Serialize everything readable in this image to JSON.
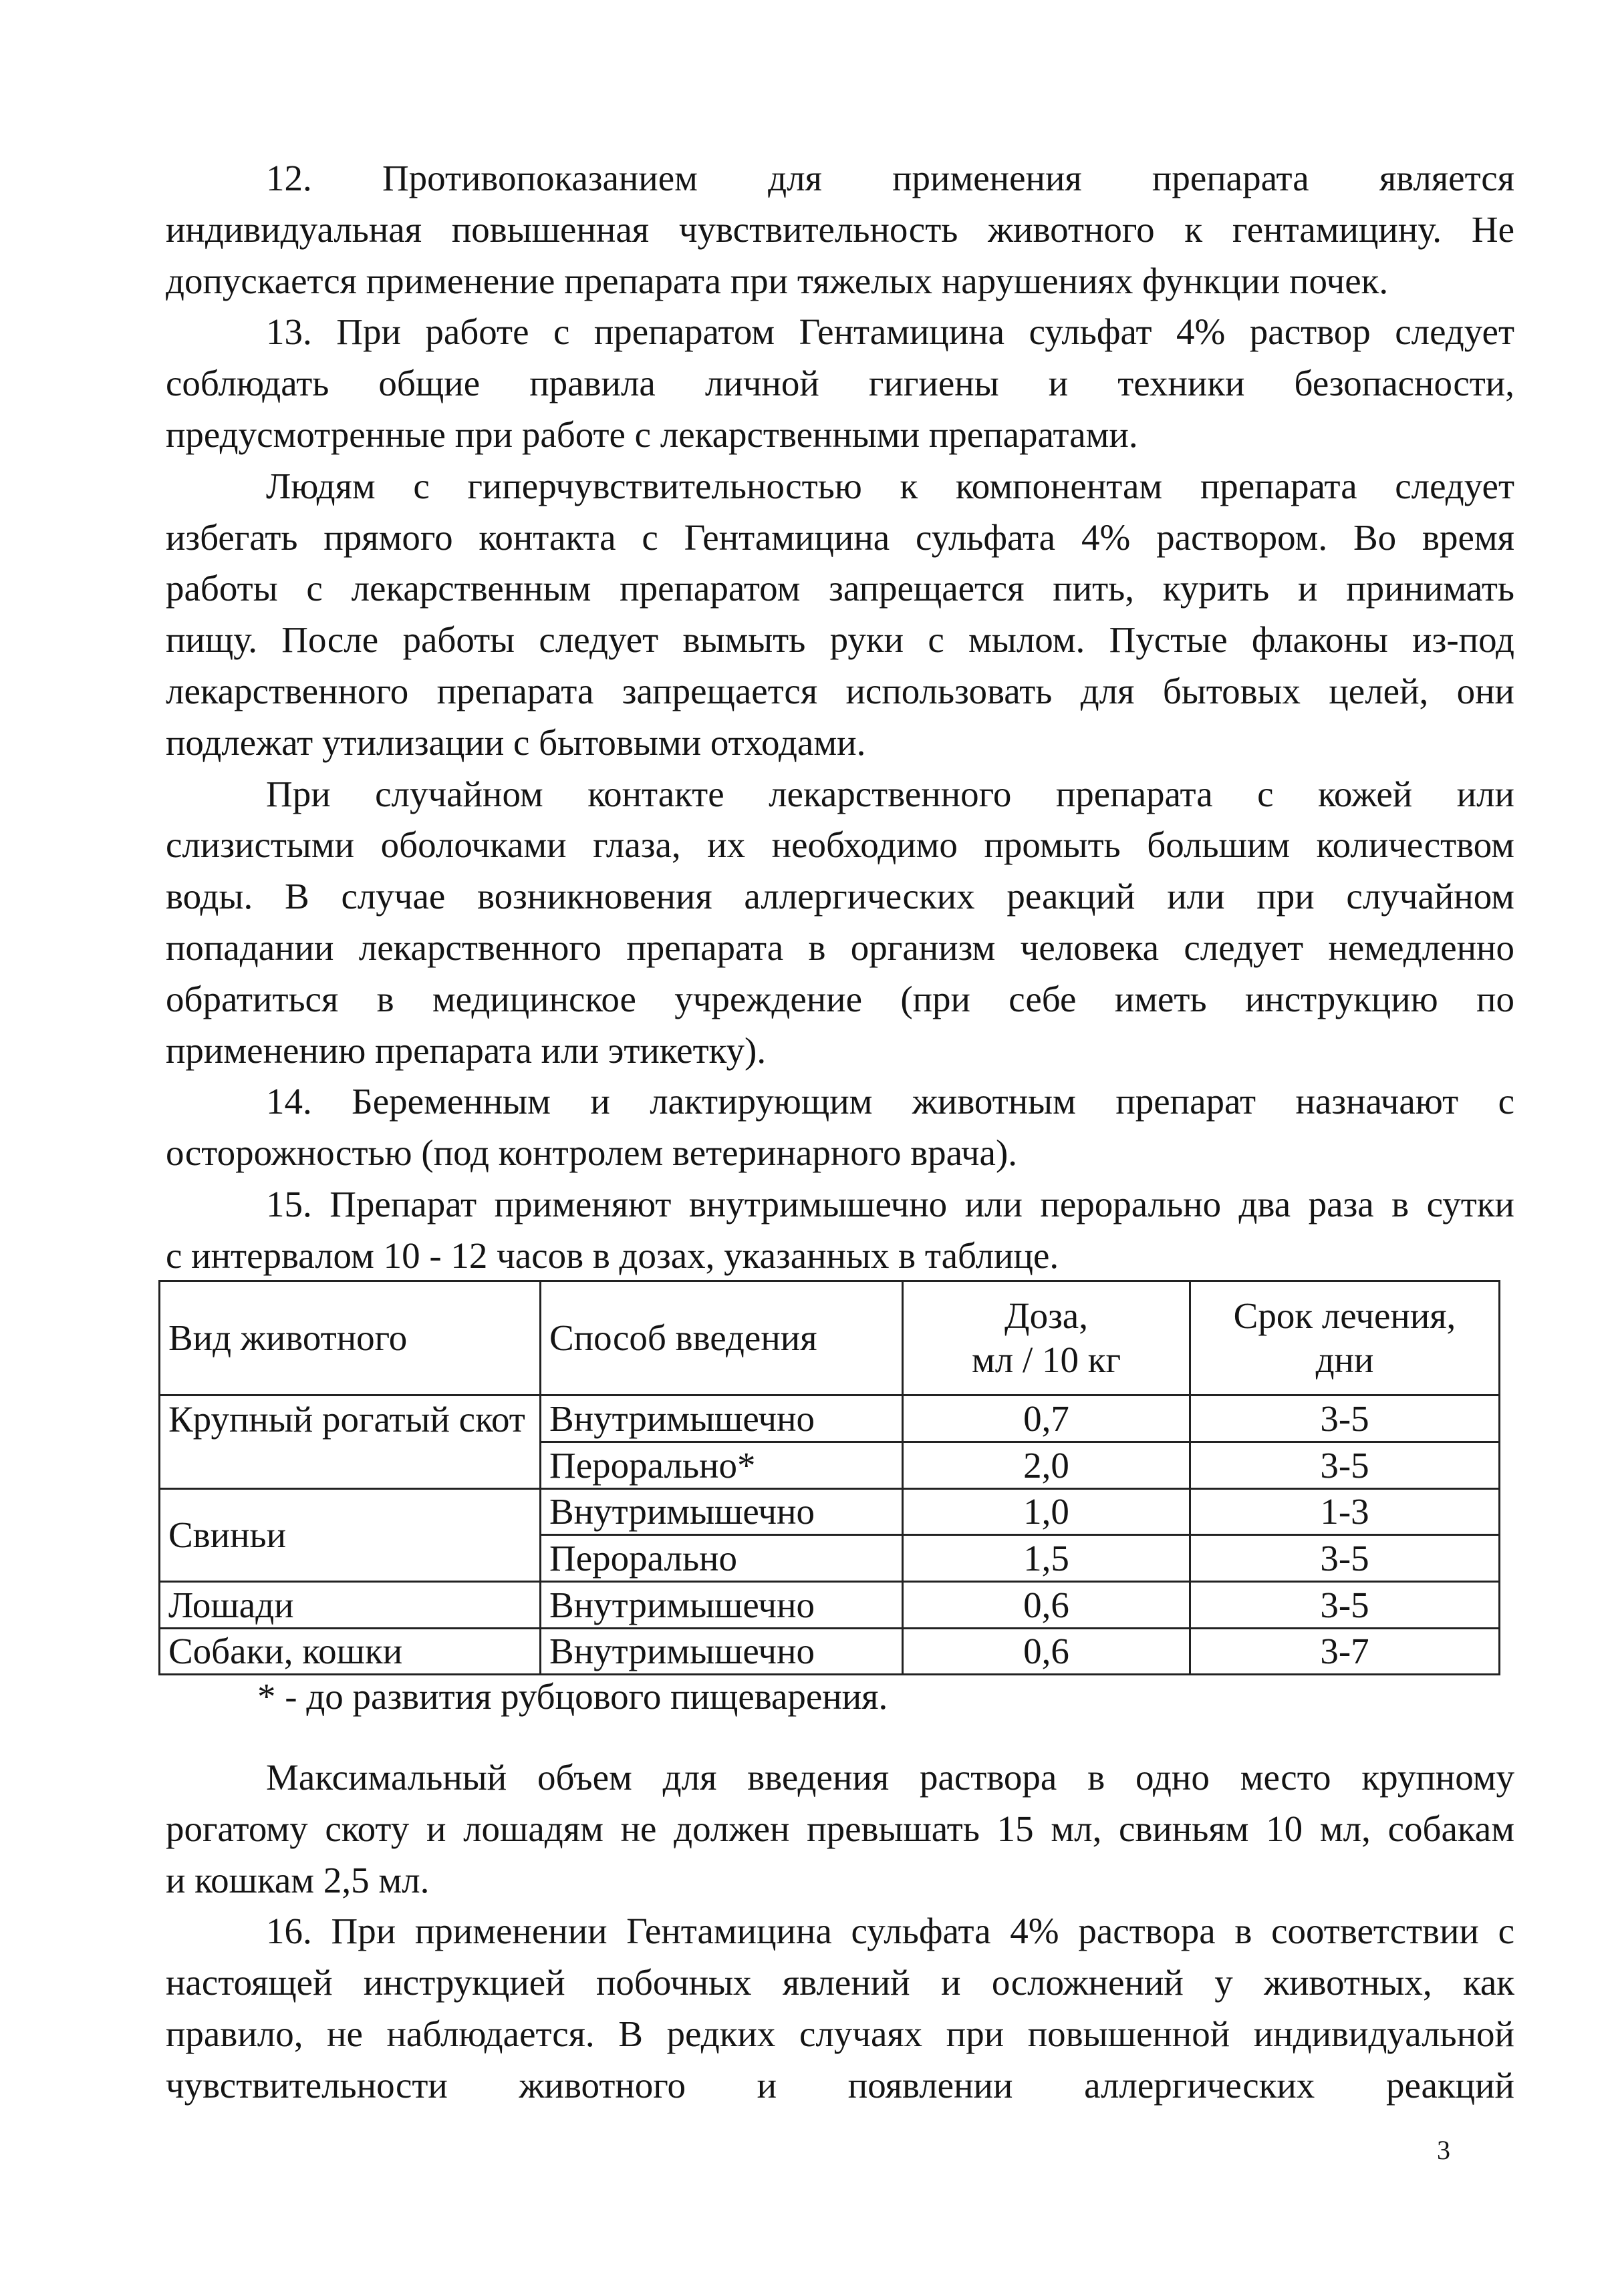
{
  "paragraphs_top": [
    {
      "lines": [
        "12. Противопоказанием для применения препарата является",
        "индивидуальная повышенная чувствительность животного к гентамицину. Не",
        "допускается применение препарата при тяжелых нарушениях функции почек."
      ]
    },
    {
      "lines": [
        "13. При работе с препаратом Гентамицина сульфат 4% раствор следует",
        "соблюдать общие правила личной гигиены и техники безопасности,",
        "предусмотренные при работе с лекарственными препаратами."
      ]
    },
    {
      "lines": [
        "Людям с гиперчувствительностью к компонентам препарата следует",
        "избегать прямого контакта с Гентамицина сульфата 4% раствором. Во время",
        "работы с лекарственным препаратом запрещается пить, курить и принимать",
        "пищу. После работы следует вымыть руки с мылом. Пустые флаконы из-под",
        "лекарственного препарата запрещается использовать для бытовых целей, они",
        "подлежат утилизации с бытовыми отходами."
      ]
    },
    {
      "lines": [
        "При случайном контакте лекарственного препарата с кожей или",
        "слизистыми оболочками глаза, их необходимо промыть большим количеством",
        "воды. В случае возникновения аллергических реакций или при случайном",
        "попадании лекарственного препарата в организм человека следует немедленно",
        "обратиться в медицинское учреждение (при себе иметь инструкцию по",
        "применению препарата или этикетку)."
      ]
    },
    {
      "lines": [
        "14. Беременным и лактирующим животным препарат назначают с",
        "осторожностью (под контролем ветеринарного врача)."
      ]
    },
    {
      "lines": [
        "15. Препарат применяют внутримышечно или перорально два раза в сутки",
        "с интервалом 10 - 12 часов в дозах, указанных в таблице."
      ]
    }
  ],
  "table": {
    "headers": [
      "Вид животного",
      "Способ введения",
      "Доза,\nмл / 10 кг",
      "Срок лечения,\nдни"
    ],
    "header_dose": [
      "Доза,",
      "мл / 10 кг"
    ],
    "header_term": [
      "Срок лечения,",
      "дни"
    ],
    "rows": [
      {
        "animal": "Крупный рогатый скот",
        "route": "Внутримышечно",
        "dose": "0,7",
        "days": "3-5"
      },
      {
        "animal": "",
        "route": "Перорально*",
        "dose": "2,0",
        "days": "3-5"
      },
      {
        "animal": "Свиньи",
        "route": "Внутримышечно",
        "dose": "1,0",
        "days": "1-3"
      },
      {
        "animal": "",
        "route": "Перорально",
        "dose": "1,5",
        "days": "3-5"
      },
      {
        "animal": "Лошади",
        "route": "Внутримышечно",
        "dose": "0,6",
        "days": "3-5"
      },
      {
        "animal": "Собаки, кошки",
        "route": "Внутримышечно",
        "dose": "0,6",
        "days": "3-7"
      }
    ]
  },
  "footnote": "* - до развития рубцового пищеварения.",
  "paragraphs_bottom": [
    {
      "lines": [
        "Максимальный объем для введения раствора в одно место крупному",
        "рогатому скоту и лошадям не должен превышать 15 мл, свиньям 10 мл, собакам",
        "и кошкам 2,5 мл."
      ]
    },
    {
      "lines": [
        "16. При применении Гентамицина сульфата 4% раствора в соответствии с",
        "настоящей инструкцией побочных явлений и осложнений у животных, как",
        "правило, не наблюдается. В редких случаях при повышенной индивидуальной",
        "чувствительности животного и появлении аллергических реакций"
      ]
    }
  ],
  "page_number": "3"
}
